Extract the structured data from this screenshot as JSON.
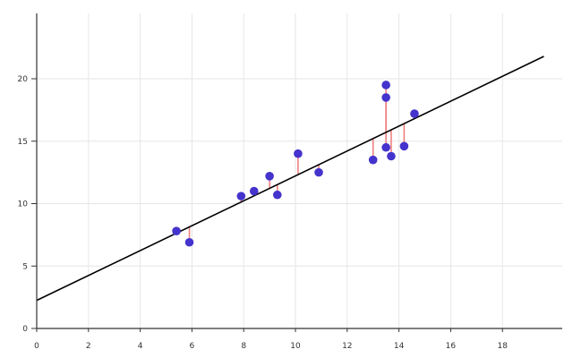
{
  "chart_data": {
    "type": "scatter",
    "title": "",
    "xlabel": "",
    "ylabel": "",
    "xlim": [
      0,
      20
    ],
    "ylim": [
      0,
      25
    ],
    "grid": true,
    "x_ticks": [
      0,
      2,
      4,
      6,
      8,
      10,
      12,
      14,
      16,
      18
    ],
    "y_ticks": [
      0,
      5,
      10,
      15,
      20
    ],
    "points": [
      {
        "x": 5.4,
        "y": 7.8
      },
      {
        "x": 5.9,
        "y": 6.9
      },
      {
        "x": 7.9,
        "y": 10.6
      },
      {
        "x": 8.4,
        "y": 11.0
      },
      {
        "x": 9.0,
        "y": 12.2
      },
      {
        "x": 9.3,
        "y": 10.7
      },
      {
        "x": 10.1,
        "y": 14.0
      },
      {
        "x": 10.9,
        "y": 12.5
      },
      {
        "x": 13.0,
        "y": 13.5
      },
      {
        "x": 13.5,
        "y": 14.5
      },
      {
        "x": 13.5,
        "y": 18.5
      },
      {
        "x": 13.5,
        "y": 19.5
      },
      {
        "x": 13.7,
        "y": 13.8
      },
      {
        "x": 14.2,
        "y": 14.6
      },
      {
        "x": 14.6,
        "y": 17.2
      }
    ],
    "regression": {
      "intercept": 2.25,
      "slope": 0.997,
      "x_range": [
        0,
        19.6
      ]
    },
    "residuals_shown": true,
    "colors": {
      "points": "#4433cc",
      "regression": "#000000",
      "residuals": "#f08080",
      "grid": "#e6e6e6",
      "axis": "#333333"
    }
  }
}
